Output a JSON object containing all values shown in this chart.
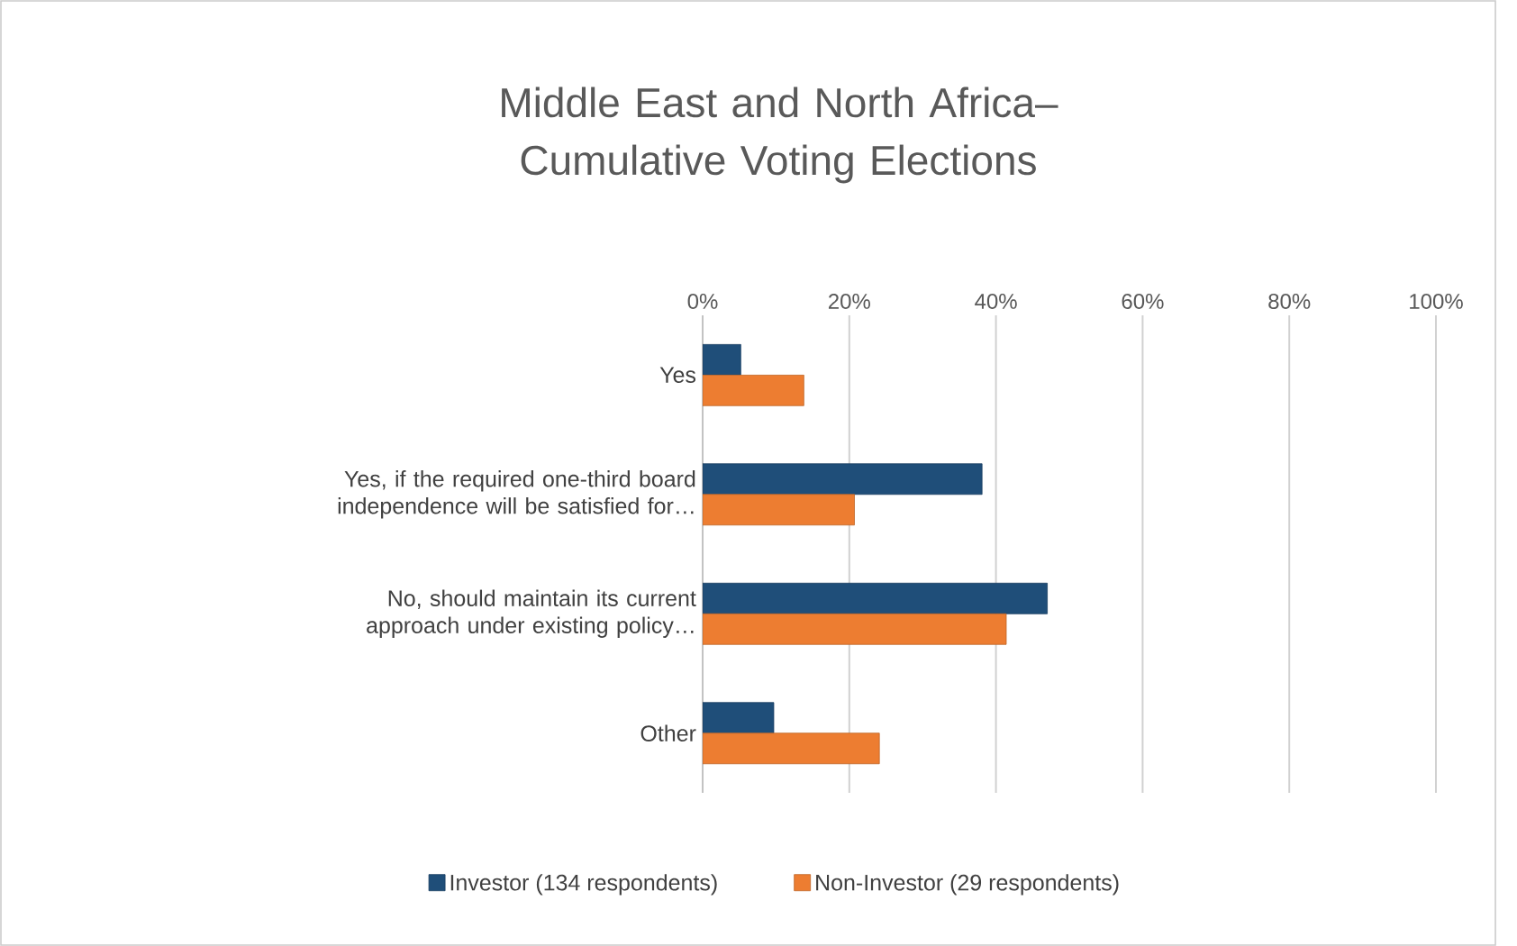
{
  "chart_data": {
    "type": "bar",
    "orientation": "horizontal",
    "title": "Middle East and North Africa– Cumulative Voting Elections",
    "categories": [
      "Yes",
      "Yes, if the required one-third board independence will be satisfied for…",
      "No, should maintain its current approach under existing policy…",
      "Other"
    ],
    "series": [
      {
        "name": "Investor (134 respondents)",
        "color": "#1f4e79",
        "values": [
          5.2,
          38.1,
          47.0,
          9.7
        ]
      },
      {
        "name": "Non-Investor (29 respondents)",
        "color": "#ed7d31",
        "values": [
          13.8,
          20.7,
          41.4,
          24.1
        ]
      }
    ],
    "xlim": [
      0,
      100
    ],
    "xticks": [
      {
        "value": 0,
        "label": "0%"
      },
      {
        "value": 20,
        "label": "20%"
      },
      {
        "value": 40,
        "label": "40%"
      },
      {
        "value": 60,
        "label": "60%"
      },
      {
        "value": 80,
        "label": "80%"
      },
      {
        "value": 100,
        "label": "100%"
      }
    ],
    "grid": "x",
    "legend": "bottom"
  }
}
